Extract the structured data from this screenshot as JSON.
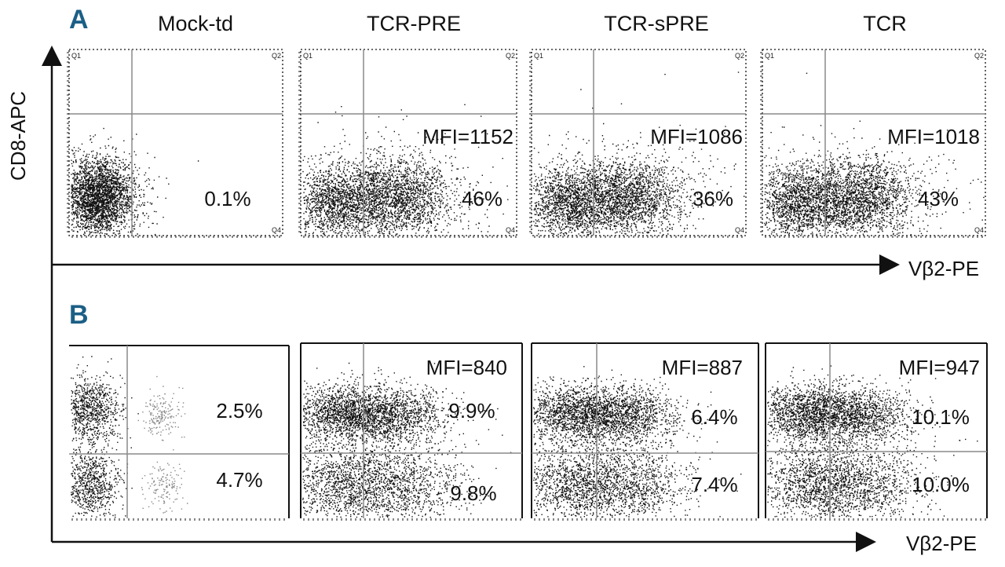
{
  "colors": {
    "panel_letter": "#1b5f86",
    "ink": "#111111",
    "gate_line": "#8a8a8a"
  },
  "panel_a": {
    "letter": "A",
    "y_axis_label": "CD8-APC",
    "x_axis_label": "Vβ2-PE",
    "quadrant_tags": [
      "Q1",
      "Q2",
      "Q4"
    ],
    "columns": [
      {
        "title": "Mock-td",
        "mfi": "",
        "percent": "0.1%"
      },
      {
        "title": "TCR-PRE",
        "mfi": "MFI=1152",
        "percent": "46%"
      },
      {
        "title": "TCR-sPRE",
        "mfi": "MFI=1086",
        "percent": "36%"
      },
      {
        "title": "TCR",
        "mfi": "MFI=1018",
        "percent": "43%"
      }
    ]
  },
  "panel_b": {
    "letter": "B",
    "x_axis_label": "Vβ2-PE",
    "columns": [
      {
        "mfi": "",
        "upper_percent": "2.5%",
        "lower_percent": "4.7%"
      },
      {
        "mfi": "MFI=840",
        "upper_percent": "9.9%",
        "lower_percent": "9.8%"
      },
      {
        "mfi": "MFI=887",
        "upper_percent": "6.4%",
        "lower_percent": "7.4%"
      },
      {
        "mfi": "MFI=947",
        "upper_percent": "10.1%",
        "lower_percent": "10.0%"
      }
    ]
  }
}
